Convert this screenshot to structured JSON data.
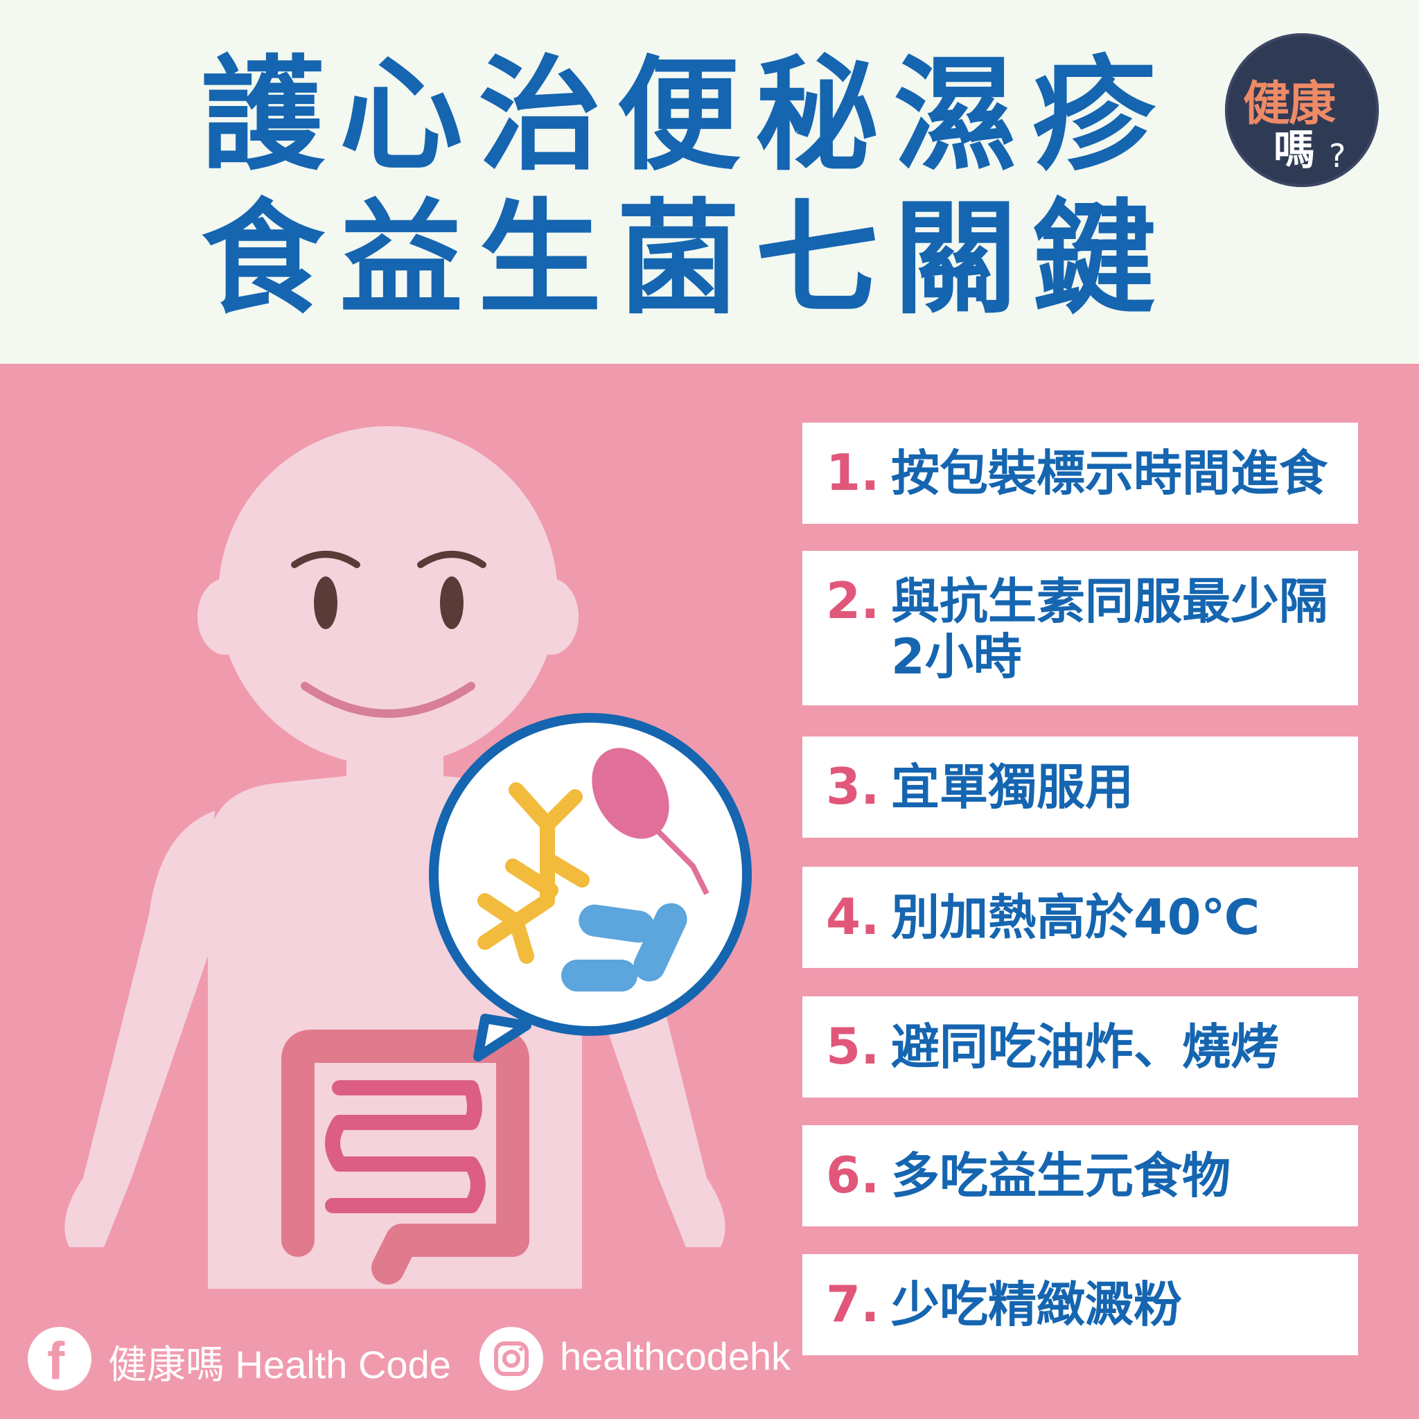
{
  "title": {
    "line1": "護心治便秘濕疹",
    "line2": "食益生菌七關鍵"
  },
  "logo": {
    "line1": "健康",
    "line2": "嗎",
    "mark": "?"
  },
  "list": [
    {
      "num": "1.",
      "text": "按包裝標示時間進食"
    },
    {
      "num": "2.",
      "text": "與抗生素同服最少隔",
      "text2": "2小時"
    },
    {
      "num": "3.",
      "text": "宜單獨服用"
    },
    {
      "num": "4.",
      "text": "別加熱高於40℃"
    },
    {
      "num": "5.",
      "text": "避同吃油炸、燒烤"
    },
    {
      "num": "6.",
      "text": "多吃益生元食物"
    },
    {
      "num": "7.",
      "text": "少吃精緻澱粉"
    }
  ],
  "footer": {
    "facebook_icon": "facebook-icon",
    "facebook_label": "健康嗎 Health Code",
    "instagram_icon": "instagram-icon",
    "instagram_label": "healthcodehk"
  },
  "colors": {
    "title_blue": "#1565b0",
    "pink_bg": "#f09aae",
    "number_pink": "#e0577a",
    "header_bg": "#f3f8f1",
    "logo_bg": "#2f3a55",
    "logo_accent": "#ee8a66"
  }
}
